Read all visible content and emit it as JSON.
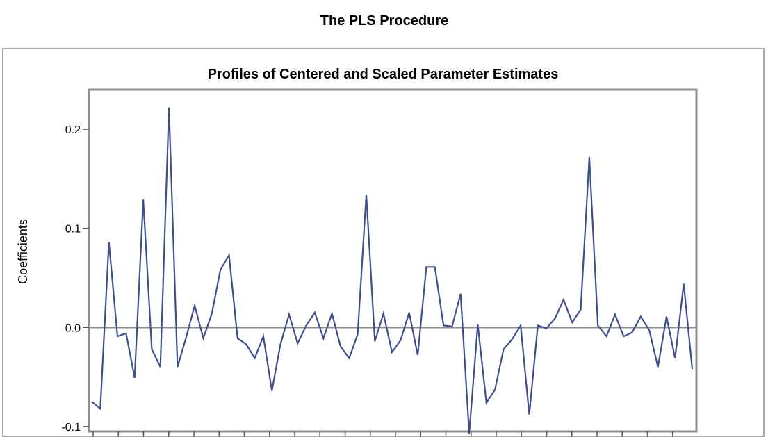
{
  "page_title": "The PLS Procedure",
  "chart_data": {
    "type": "line",
    "title": "Profiles of Centered and Scaled Parameter Estimates",
    "xlabel": "",
    "ylabel": "Coefficients",
    "ylim": [
      -0.105,
      0.24
    ],
    "yticks": [
      0.2,
      0.1,
      0.0,
      -0.1
    ],
    "ytick_labels": [
      "0.2",
      "0.1",
      "0.0",
      "-0.1"
    ],
    "reference_line": 0.0,
    "x_count": 71,
    "x_tick_count": 24,
    "series": [
      {
        "name": "Coefficients",
        "color": "#3f4f8c",
        "values": [
          -0.075,
          -0.082,
          0.086,
          -0.009,
          -0.006,
          -0.051,
          0.129,
          -0.022,
          -0.04,
          0.222,
          -0.04,
          -0.01,
          0.022,
          -0.011,
          0.014,
          0.058,
          0.073,
          -0.011,
          -0.017,
          -0.031,
          -0.009,
          -0.064,
          -0.017,
          0.013,
          -0.016,
          0.002,
          0.015,
          -0.011,
          0.014,
          -0.019,
          -0.031,
          -0.007,
          0.134,
          -0.014,
          0.014,
          -0.025,
          -0.013,
          0.015,
          -0.028,
          0.061,
          0.061,
          0.002,
          0.001,
          0.034,
          -0.107,
          0.003,
          -0.076,
          -0.063,
          -0.022,
          -0.012,
          0.002,
          -0.088,
          0.002,
          -0.001,
          0.009,
          0.028,
          0.005,
          0.018,
          0.172,
          0.002,
          -0.009,
          0.013,
          -0.009,
          -0.005,
          0.011,
          -0.003,
          -0.04,
          0.011,
          -0.031,
          0.044,
          -0.042
        ]
      }
    ]
  }
}
